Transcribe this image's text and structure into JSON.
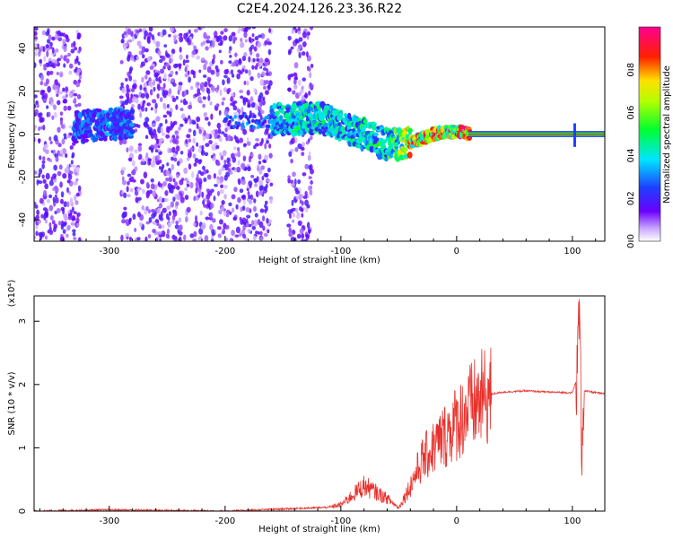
{
  "title": "C2E4.2024.126.23.36.R22",
  "chart_data": [
    {
      "type": "heatmap",
      "title": "C2E4.2024.126.23.36.R22",
      "xlabel": "Height of straight line (km)",
      "ylabel": "Frequency (Hz)",
      "xlim": [
        -365,
        128
      ],
      "ylim": [
        -50,
        50
      ],
      "x_ticks": [
        -300,
        -200,
        -100,
        0,
        100
      ],
      "y_ticks": [
        -40,
        -20,
        0,
        20,
        40
      ],
      "colorbar": {
        "label": "Normalized spectral amplitude",
        "range": [
          0,
          1
        ],
        "ticks": [
          "0.0",
          "0.2",
          "0.4",
          "0.6",
          "0.8"
        ],
        "colormap": "rainbow (violet-blue-cyan-green-yellow-red-magenta)"
      },
      "ridge": {
        "description": "Dominant frequency ridge (Hz) vs height (km)",
        "x": [
          -330,
          -300,
          -280,
          -150,
          -120,
          -100,
          -80,
          -60,
          -40,
          -20,
          0,
          10,
          100,
          105,
          125
        ],
        "y": [
          3,
          5,
          4,
          7,
          8,
          4,
          0,
          -5,
          -4,
          0,
          1,
          0,
          0,
          0,
          0
        ],
        "amplitude": [
          0.3,
          0.35,
          0.3,
          0.45,
          0.5,
          0.45,
          0.5,
          0.5,
          0.85,
          0.9,
          0.9,
          1.0,
          1.0,
          0.9,
          1.0
        ]
      },
      "noise_bands_x": [
        [
          -365,
          -325
        ],
        [
          -290,
          -160
        ],
        [
          -145,
          -125
        ]
      ]
    },
    {
      "type": "line",
      "xlabel": "Height of straight line (km)",
      "ylabel": "SNR (10 * v/v)",
      "y_multiplier_label": "(x10⁴)",
      "xlim": [
        -365,
        128
      ],
      "ylim": [
        0,
        3.4
      ],
      "x_ticks": [
        -300,
        -200,
        -100,
        0,
        100
      ],
      "y_ticks": [
        0,
        1,
        2,
        3
      ],
      "color": "#e8312c",
      "series": [
        {
          "x": [
            -365,
            -300,
            -200,
            -140,
            -110,
            -100,
            -90,
            -80,
            -70,
            -60,
            -50,
            -40,
            -30,
            -20,
            -10,
            0,
            10,
            20,
            30,
            40,
            60,
            80,
            100,
            104,
            106,
            108,
            110,
            128
          ],
          "y": [
            0.0,
            0.02,
            0.0,
            0.04,
            0.06,
            0.1,
            0.25,
            0.4,
            0.3,
            0.2,
            0.05,
            0.4,
            0.8,
            1.0,
            1.2,
            1.4,
            1.6,
            1.75,
            1.85,
            1.88,
            1.9,
            1.88,
            1.87,
            2.1,
            3.3,
            1.0,
            1.9,
            1.85
          ]
        }
      ]
    }
  ]
}
